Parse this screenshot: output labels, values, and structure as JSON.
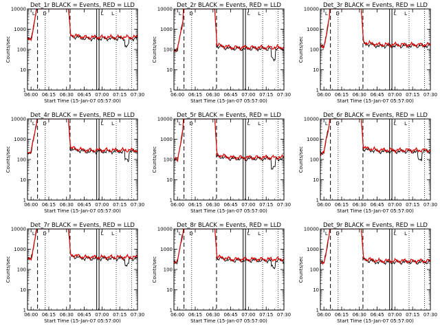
{
  "figure": {
    "ylabel": "Counts/sec",
    "xlabel": "Start Time (15-Jan-07 05:57:00)"
  },
  "chart_data": [
    {
      "type": "line",
      "title": "Det_1r BLACK = Events, RED = LLD"
    },
    {
      "type": "line",
      "title": "Det_2r BLACK = Events, RED = LLD"
    },
    {
      "type": "line",
      "title": "Det_3r BLACK = Events, RED = LLD"
    },
    {
      "type": "line",
      "title": "Det_4r BLACK = Events, RED = LLD"
    },
    {
      "type": "line",
      "title": "Det_5r BLACK = Events, RED = LLD"
    },
    {
      "type": "line",
      "title": "Det_6r BLACK = Events, RED = LLD"
    },
    {
      "type": "line",
      "title": "Det_7r BLACK = Events, RED = LLD"
    },
    {
      "type": "line",
      "title": "Det_8r BLACK = Events, RED = LLD"
    },
    {
      "type": "line",
      "title": "Det_9r BLACK = Events, RED = LLD"
    }
  ],
  "shared_axes": {
    "xlim_min": [
      0,
      93
    ],
    "xticks_min": [
      3,
      18,
      33,
      48,
      63,
      78,
      93
    ],
    "xtick_labels": [
      "06:00",
      "06:15",
      "06:30",
      "06:45",
      "07:00",
      "07:15",
      "07:30"
    ],
    "yscale": "log",
    "ylim": [
      1,
      10000
    ],
    "yticks": [
      1,
      10,
      100,
      1000,
      10000
    ],
    "ytick_labels": [
      "1",
      "10",
      "100",
      "1000",
      "10000"
    ]
  },
  "markers": {
    "dashed_min": [
      8.5,
      36
    ],
    "dotted_min": [
      15,
      75,
      88
    ],
    "solid_double_min": [
      58.5,
      60.5
    ],
    "bracket_labels": [
      {
        "text": "L",
        "min": 4
      },
      {
        "text": "D",
        "min": 13
      },
      {
        "text": "L",
        "min": 71
      },
      {
        "text": "L",
        "min": 62
      }
    ]
  },
  "series_profiles": {
    "baselines": [
      350,
      110,
      150,
      250,
      110,
      250,
      350,
      280,
      230
    ],
    "black_dip": [
      150,
      35,
      0,
      100,
      40,
      100,
      170,
      130,
      0
    ]
  }
}
